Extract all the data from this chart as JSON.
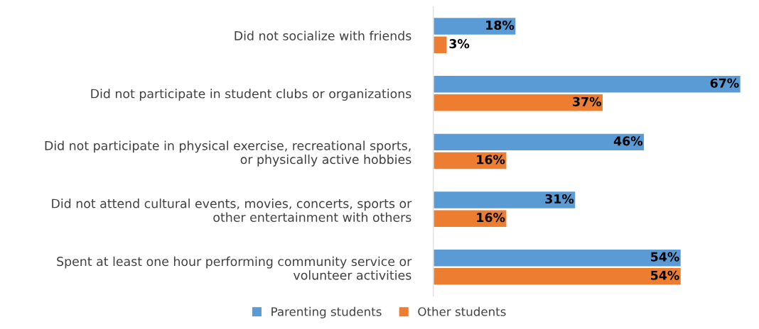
{
  "chart_data": {
    "type": "bar",
    "orientation": "horizontal",
    "categories": [
      "Did not socialize with friends",
      "Did not participate in student clubs or organizations",
      "Did not participate in physical exercise, recreational sports,\nor physically active hobbies",
      "Did not attend cultural events, movies, concerts, sports or\nother entertainment with others",
      "Spent at least one hour performing community service or\nvolunteer activities"
    ],
    "series": [
      {
        "name": "Parenting students",
        "color": "#5b9bd5",
        "values": [
          18,
          67,
          46,
          31,
          54
        ],
        "value_labels": [
          "18%",
          "67%",
          "46%",
          "31%",
          "54%"
        ]
      },
      {
        "name": "Other students",
        "color": "#ed7d31",
        "values": [
          3,
          37,
          16,
          16,
          54
        ],
        "value_labels": [
          "3%",
          "37%",
          "16%",
          "16%",
          "54%"
        ]
      }
    ],
    "xlim": [
      0,
      67
    ],
    "tick_labels": "y",
    "grid": false,
    "legend": "bottom"
  }
}
